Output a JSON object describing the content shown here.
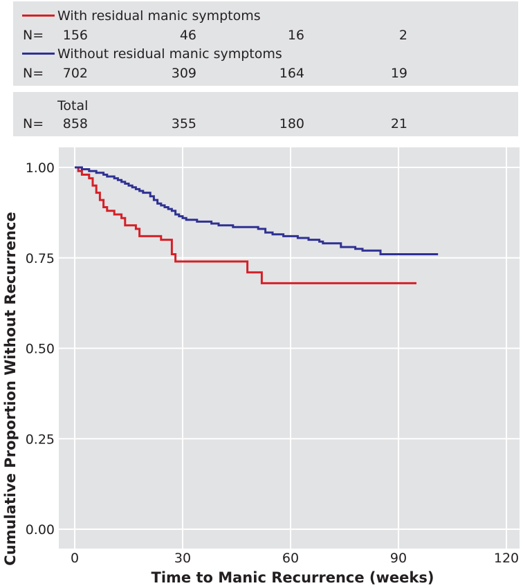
{
  "risk_table": {
    "n_label": "N=",
    "groups": [
      {
        "name": "With residual manic symptoms",
        "color": "#d42027",
        "counts": [
          "156",
          "46",
          "16",
          "2"
        ]
      },
      {
        "name": "Without residual manic symptoms",
        "color": "#2e3192",
        "counts": [
          "702",
          "309",
          "164",
          "19"
        ]
      }
    ],
    "total": {
      "label": "Total",
      "counts": [
        "858",
        "355",
        "180",
        "21"
      ]
    }
  },
  "chart_data": {
    "type": "line",
    "title": "",
    "xlabel": "Time to Manic Recurrence (weeks)",
    "ylabel": "Cumulative Proportion Without Recurrence",
    "xlim": [
      0,
      120
    ],
    "ylim": [
      0,
      1
    ],
    "x_ticks": [
      "0",
      "30",
      "60",
      "90",
      "120"
    ],
    "y_ticks": [
      "0.00",
      "0.25",
      "0.50",
      "0.75",
      "1.00"
    ],
    "grid": true,
    "background": "#e2e3e5",
    "series": [
      {
        "name": "With residual manic symptoms",
        "color": "#d42027",
        "step_points": [
          [
            0,
            1.0
          ],
          [
            1,
            0.99
          ],
          [
            2,
            0.98
          ],
          [
            4,
            0.97
          ],
          [
            5,
            0.95
          ],
          [
            6,
            0.93
          ],
          [
            7,
            0.91
          ],
          [
            8,
            0.89
          ],
          [
            9,
            0.88
          ],
          [
            11,
            0.87
          ],
          [
            13,
            0.86
          ],
          [
            14,
            0.84
          ],
          [
            17,
            0.83
          ],
          [
            18,
            0.81
          ],
          [
            24,
            0.8
          ],
          [
            27,
            0.76
          ],
          [
            28,
            0.74
          ],
          [
            48,
            0.71
          ],
          [
            52,
            0.68
          ],
          [
            95,
            0.68
          ]
        ]
      },
      {
        "name": "Without residual manic symptoms",
        "color": "#2e3192",
        "step_points": [
          [
            0,
            1.0
          ],
          [
            2,
            0.995
          ],
          [
            4,
            0.99
          ],
          [
            6,
            0.985
          ],
          [
            8,
            0.98
          ],
          [
            9,
            0.975
          ],
          [
            11,
            0.97
          ],
          [
            12,
            0.965
          ],
          [
            13,
            0.96
          ],
          [
            14,
            0.955
          ],
          [
            15,
            0.95
          ],
          [
            16,
            0.945
          ],
          [
            17,
            0.94
          ],
          [
            18,
            0.935
          ],
          [
            19,
            0.93
          ],
          [
            21,
            0.92
          ],
          [
            22,
            0.91
          ],
          [
            23,
            0.9
          ],
          [
            24,
            0.895
          ],
          [
            25,
            0.89
          ],
          [
            26,
            0.885
          ],
          [
            27,
            0.88
          ],
          [
            28,
            0.87
          ],
          [
            29,
            0.865
          ],
          [
            30,
            0.86
          ],
          [
            31,
            0.855
          ],
          [
            34,
            0.85
          ],
          [
            38,
            0.845
          ],
          [
            40,
            0.84
          ],
          [
            44,
            0.835
          ],
          [
            51,
            0.83
          ],
          [
            53,
            0.82
          ],
          [
            55,
            0.815
          ],
          [
            58,
            0.81
          ],
          [
            62,
            0.805
          ],
          [
            65,
            0.8
          ],
          [
            68,
            0.795
          ],
          [
            69,
            0.79
          ],
          [
            74,
            0.78
          ],
          [
            78,
            0.775
          ],
          [
            80,
            0.77
          ],
          [
            85,
            0.76
          ],
          [
            101,
            0.76
          ]
        ]
      }
    ]
  }
}
